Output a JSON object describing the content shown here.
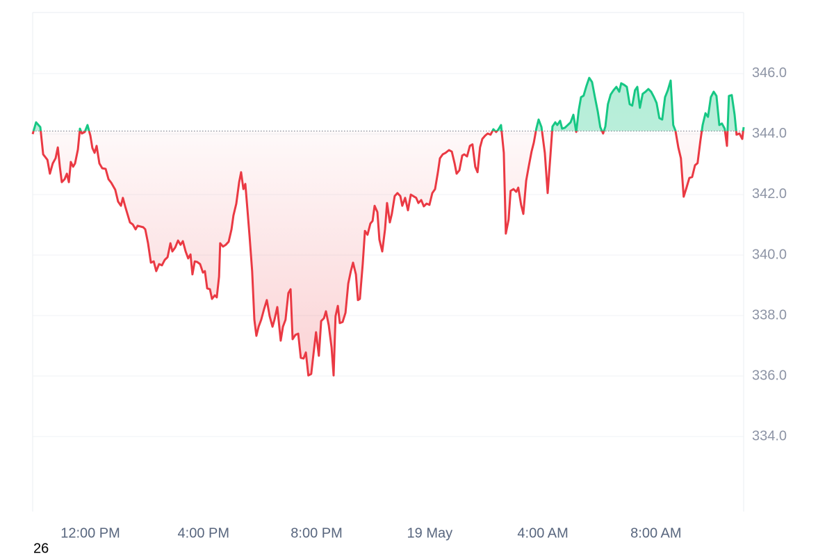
{
  "chart_data": {
    "type": "line",
    "corner_label": "26",
    "up_color": "#16c784",
    "down_color": "#ea3943",
    "baseline": 344.1,
    "xlim": [
      9.96,
      35.1
    ],
    "ylim": [
      331.52,
      348.02
    ],
    "grid": true,
    "xticks": [
      {
        "value": 12,
        "label": "12:00 PM"
      },
      {
        "value": 16,
        "label": "4:00 PM"
      },
      {
        "value": 20,
        "label": "8:00 PM"
      },
      {
        "value": 24,
        "label": "19 May"
      },
      {
        "value": 28,
        "label": "4:00 AM"
      },
      {
        "value": 32,
        "label": "8:00 AM"
      }
    ],
    "yticks": [
      {
        "value": 334,
        "label": "334.0"
      },
      {
        "value": 336,
        "label": "336.0"
      },
      {
        "value": 338,
        "label": "338.0"
      },
      {
        "value": 340,
        "label": "340.0"
      },
      {
        "value": 342,
        "label": "342.0"
      },
      {
        "value": 344,
        "label": "344.0"
      },
      {
        "value": 346,
        "label": "346.0"
      }
    ],
    "x": [
      9.96,
      10.08,
      10.23,
      10.33,
      10.48,
      10.57,
      10.67,
      10.77,
      10.85,
      10.92,
      10.99,
      11.09,
      11.17,
      11.24,
      11.31,
      11.39,
      11.46,
      11.56,
      11.63,
      11.7,
      11.8,
      11.9,
      12.0,
      12.07,
      12.15,
      12.22,
      12.32,
      12.42,
      12.54,
      12.64,
      12.74,
      12.88,
      12.98,
      13.08,
      13.15,
      13.23,
      13.4,
      13.5,
      13.6,
      13.67,
      13.87,
      13.94,
      14.04,
      14.14,
      14.24,
      14.33,
      14.43,
      14.53,
      14.63,
      14.73,
      14.83,
      14.9,
      15.0,
      15.1,
      15.19,
      15.27,
      15.37,
      15.46,
      15.54,
      15.61,
      15.69,
      15.78,
      15.88,
      15.98,
      16.05,
      16.13,
      16.23,
      16.3,
      16.4,
      16.47,
      16.55,
      16.59,
      16.69,
      16.79,
      16.89,
      16.99,
      17.06,
      17.16,
      17.26,
      17.33,
      17.41,
      17.48,
      17.55,
      17.63,
      17.72,
      17.8,
      17.87,
      17.95,
      18.04,
      18.14,
      18.24,
      18.34,
      18.44,
      18.51,
      18.61,
      18.73,
      18.81,
      18.9,
      19.0,
      19.08,
      19.15,
      19.25,
      19.35,
      19.44,
      19.54,
      19.62,
      19.71,
      19.81,
      19.91,
      19.98,
      20.08,
      20.16,
      20.26,
      20.33,
      20.43,
      20.53,
      20.6,
      20.67,
      20.75,
      20.82,
      20.92,
      21.02,
      21.12,
      21.21,
      21.29,
      21.39,
      21.46,
      21.53,
      21.63,
      21.71,
      21.8,
      21.9,
      21.98,
      22.05,
      22.15,
      22.22,
      22.32,
      22.42,
      22.49,
      22.59,
      22.66,
      22.76,
      22.86,
      22.96,
      23.03,
      23.13,
      23.23,
      23.33,
      23.52,
      23.6,
      23.7,
      23.79,
      23.89,
      23.99,
      24.09,
      24.19,
      24.29,
      24.36,
      24.46,
      24.56,
      24.68,
      24.78,
      24.88,
      24.95,
      25.05,
      25.15,
      25.22,
      25.32,
      25.42,
      25.51,
      25.61,
      25.69,
      25.78,
      25.86,
      25.96,
      26.05,
      26.15,
      26.25,
      26.35,
      26.42,
      26.52,
      26.62,
      26.69,
      26.79,
      26.86,
      26.96,
      27.06,
      27.13,
      27.23,
      27.31,
      27.41,
      27.5,
      27.6,
      27.68,
      27.77,
      27.85,
      27.95,
      28.07,
      28.17,
      28.27,
      28.34,
      28.44,
      28.51,
      28.61,
      28.68,
      28.78,
      28.88,
      28.98,
      29.08,
      29.18,
      29.27,
      29.35,
      29.44,
      29.54,
      29.64,
      29.74,
      29.84,
      29.94,
      30.03,
      30.13,
      30.21,
      30.3,
      30.4,
      30.5,
      30.6,
      30.7,
      30.77,
      30.87,
      30.97,
      31.07,
      31.16,
      31.26,
      31.34,
      31.43,
      31.53,
      31.63,
      31.73,
      31.83,
      31.93,
      32.02,
      32.12,
      32.22,
      32.32,
      32.42,
      32.52,
      32.61,
      32.69,
      32.79,
      32.88,
      32.98,
      33.08,
      33.18,
      33.28,
      33.38,
      33.47,
      33.57,
      33.65,
      33.75,
      33.84,
      33.94,
      34.04,
      34.14,
      34.24,
      34.33,
      34.43,
      34.51,
      34.58,
      34.68,
      34.78,
      34.85,
      34.95,
      35.05,
      35.1
    ],
    "values": [
      344.0,
      344.39,
      344.23,
      343.33,
      343.15,
      342.69,
      343.03,
      343.2,
      343.56,
      342.92,
      342.41,
      342.51,
      342.69,
      342.41,
      343.08,
      342.92,
      343.03,
      343.49,
      344.18,
      344.02,
      344.07,
      344.3,
      343.95,
      343.54,
      343.38,
      343.61,
      343.03,
      342.87,
      342.85,
      342.51,
      342.39,
      342.16,
      341.77,
      341.63,
      341.89,
      341.61,
      341.08,
      341.01,
      340.85,
      340.97,
      340.92,
      340.85,
      340.39,
      339.75,
      339.79,
      339.47,
      339.7,
      339.66,
      339.84,
      339.93,
      340.39,
      340.12,
      340.25,
      340.48,
      340.34,
      340.46,
      340.12,
      339.89,
      340.02,
      339.36,
      339.79,
      339.77,
      339.7,
      339.42,
      339.47,
      338.9,
      338.87,
      338.55,
      338.67,
      338.6,
      339.29,
      340.39,
      340.28,
      340.34,
      340.44,
      340.85,
      341.31,
      341.7,
      342.41,
      342.74,
      342.18,
      342.35,
      341.54,
      340.62,
      339.47,
      337.86,
      337.33,
      337.63,
      337.86,
      338.21,
      338.51,
      337.98,
      337.63,
      337.86,
      338.28,
      337.17,
      337.63,
      337.86,
      338.74,
      338.87,
      337.22,
      337.36,
      337.4,
      336.6,
      336.58,
      336.78,
      336.02,
      336.07,
      336.9,
      337.45,
      336.67,
      337.82,
      337.91,
      338.14,
      337.68,
      336.94,
      336.02,
      337.98,
      338.32,
      337.75,
      337.79,
      338.09,
      339.06,
      339.47,
      339.75,
      339.36,
      338.51,
      338.55,
      339.7,
      340.8,
      340.67,
      341.04,
      341.13,
      341.63,
      341.42,
      340.51,
      340.12,
      340.85,
      341.72,
      341.08,
      341.36,
      341.95,
      342.05,
      341.95,
      341.63,
      341.89,
      341.48,
      342.0,
      341.89,
      341.72,
      341.82,
      341.61,
      341.7,
      341.66,
      342.05,
      342.18,
      342.74,
      343.2,
      343.33,
      343.38,
      343.47,
      343.42,
      343.03,
      342.69,
      342.8,
      343.29,
      343.33,
      343.26,
      343.61,
      343.66,
      342.92,
      342.74,
      343.56,
      343.84,
      343.95,
      344.02,
      343.98,
      344.16,
      344.07,
      344.14,
      344.3,
      343.38,
      340.71,
      341.17,
      342.12,
      342.18,
      342.09,
      342.23,
      341.66,
      341.36,
      342.46,
      342.92,
      343.42,
      343.72,
      344.18,
      344.48,
      344.23,
      343.38,
      342.05,
      343.33,
      344.25,
      344.39,
      344.3,
      344.44,
      344.18,
      344.21,
      344.3,
      344.39,
      344.64,
      344.07,
      344.8,
      345.22,
      345.27,
      345.59,
      345.86,
      345.72,
      345.22,
      344.76,
      344.23,
      344.02,
      344.25,
      344.99,
      345.31,
      345.45,
      345.56,
      345.4,
      345.68,
      345.63,
      345.56,
      344.99,
      344.94,
      345.45,
      345.56,
      344.87,
      345.33,
      345.4,
      345.49,
      345.4,
      345.22,
      345.03,
      344.53,
      344.48,
      345.22,
      345.45,
      345.77,
      344.3,
      344.11,
      343.56,
      343.2,
      341.93,
      342.23,
      342.55,
      342.58,
      342.97,
      343.04,
      343.77,
      344.3,
      344.69,
      344.57,
      345.22,
      345.4,
      345.26,
      344.3,
      344.35,
      344.18,
      343.61,
      345.26,
      345.29,
      344.64,
      343.98,
      344.02,
      343.84,
      344.23
    ]
  }
}
